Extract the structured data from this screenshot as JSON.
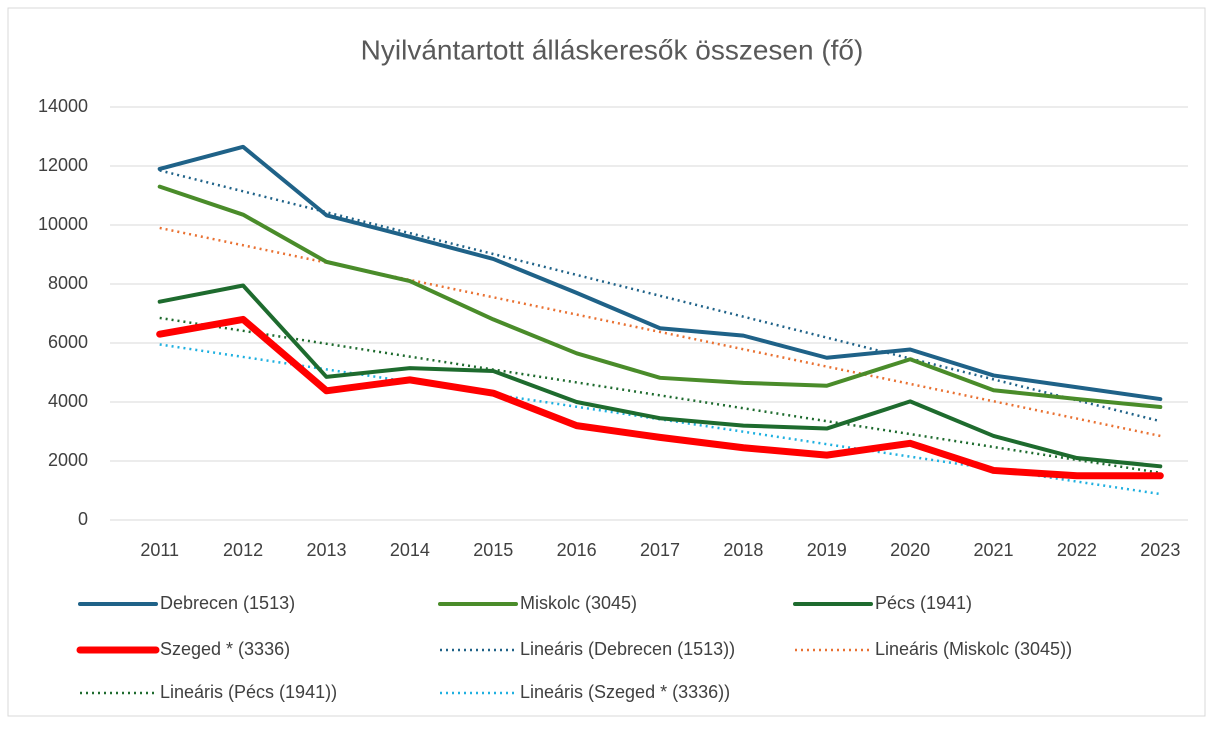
{
  "chart_data": {
    "type": "line",
    "title": "Nyilvántartott álláskeresők összesen (fő)",
    "categories": [
      "2011",
      "2012",
      "2013",
      "2014",
      "2015",
      "2016",
      "2017",
      "2018",
      "2019",
      "2020",
      "2021",
      "2022",
      "2023"
    ],
    "series": [
      {
        "name": "Debrecen (1513)",
        "color": "#1f6288",
        "style": "solid",
        "width": 4,
        "values": [
          11900,
          12650,
          10330,
          9600,
          8850,
          7700,
          6500,
          6250,
          5500,
          5780,
          4900,
          4500,
          4100
        ]
      },
      {
        "name": "Miskolc (3045)",
        "color": "#4a8c2a",
        "style": "solid",
        "width": 4,
        "values": [
          11300,
          10350,
          8750,
          8100,
          6800,
          5650,
          4820,
          4650,
          4550,
          5450,
          4400,
          4100,
          3830
        ]
      },
      {
        "name": "Pécs (1941)",
        "color": "#1e6b2e",
        "style": "solid",
        "width": 4,
        "values": [
          7400,
          7950,
          4850,
          5150,
          5050,
          4000,
          3450,
          3200,
          3100,
          4020,
          2850,
          2100,
          1820
        ]
      },
      {
        "name": "Szeged * (3336)",
        "color": "#ff0000",
        "style": "solid",
        "width": 7,
        "values": [
          6300,
          6800,
          4380,
          4750,
          4300,
          3200,
          2800,
          2450,
          2200,
          2600,
          1680,
          1500,
          1500
        ]
      },
      {
        "name": "Lineáris (Debrecen (1513))",
        "color": "#1f6288",
        "style": "dotted",
        "width": 2.5,
        "values": [
          11850,
          11142,
          10433,
          9725,
          9017,
          8308,
          7600,
          6892,
          6183,
          5475,
          4767,
          4058,
          3350
        ]
      },
      {
        "name": "Lineáris (Miskolc (3045))",
        "color": "#e97132",
        "style": "dotted",
        "width": 2.5,
        "values": [
          9900,
          9313,
          8725,
          8138,
          7550,
          6963,
          6375,
          5788,
          5200,
          4613,
          4025,
          3438,
          2850
        ]
      },
      {
        "name": "Lineáris (Pécs (1941))",
        "color": "#1e6b2e",
        "style": "dotted",
        "width": 2.5,
        "values": [
          6850,
          6413,
          5975,
          5538,
          5100,
          4663,
          4225,
          3788,
          3350,
          2913,
          2475,
          2038,
          1600
        ]
      },
      {
        "name": "Lineáris (Szeged * (3336))",
        "color": "#1fb0e0",
        "style": "dotted",
        "width": 2.5,
        "values": [
          5950,
          5528,
          5105,
          4683,
          4260,
          3838,
          3415,
          2993,
          2570,
          2148,
          1725,
          1303,
          880
        ]
      }
    ],
    "ylim": [
      0,
      14000
    ],
    "yticks": [
      0,
      2000,
      4000,
      6000,
      8000,
      10000,
      12000,
      14000
    ],
    "grid": true,
    "legend": "bottom"
  }
}
